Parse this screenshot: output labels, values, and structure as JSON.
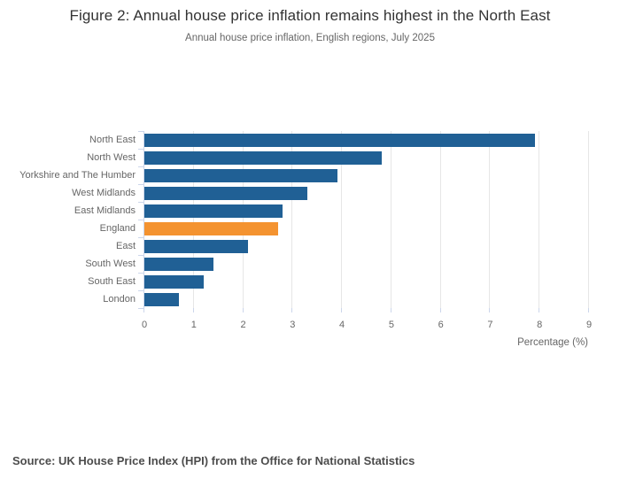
{
  "header": {
    "title": "Figure 2: Annual house price inflation remains highest in the North East",
    "subtitle": "Annual house price inflation, English regions, July 2025"
  },
  "footer": {
    "source": "Source: UK House Price Index (HPI) from the Office for National Statistics"
  },
  "colors": {
    "bar": "#206095",
    "highlight_bar": "#f49330",
    "gridline": "#e6e6e6",
    "axis_line": "#ccd6eb",
    "muted_text": "#666666",
    "title_text": "#333333",
    "source_text": "#4c4c4c"
  },
  "chart_data": {
    "type": "bar",
    "orientation": "horizontal",
    "title": "Figure 2: Annual house price inflation remains highest in the North East",
    "subtitle": "Annual house price inflation, English regions, July 2025",
    "categories": [
      "North East",
      "North West",
      "Yorkshire and The Humber",
      "West Midlands",
      "East Midlands",
      "England",
      "East",
      "South West",
      "South East",
      "London"
    ],
    "values": [
      7.9,
      4.8,
      3.9,
      3.3,
      2.8,
      2.7,
      2.1,
      1.4,
      1.2,
      0.7
    ],
    "highlight_category": "England",
    "highlight_index": 5,
    "xlabel": "Percentage (%)",
    "ylabel": "",
    "xlim": [
      0,
      9
    ],
    "xticks": [
      0,
      1,
      2,
      3,
      4,
      5,
      6,
      7,
      8,
      9
    ],
    "grid": true,
    "legend": "none"
  }
}
